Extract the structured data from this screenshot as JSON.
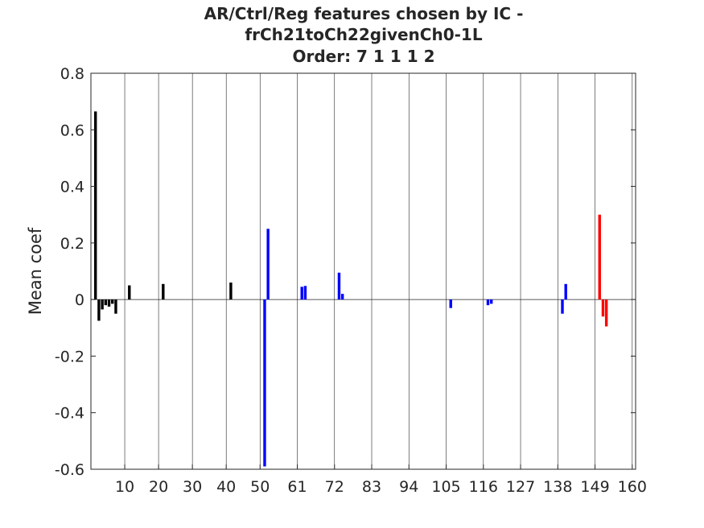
{
  "chart_data": {
    "type": "bar",
    "title": [
      "AR/Ctrl/Reg features chosen by IC -",
      "frCh21toCh22givenCh0-1L",
      "Order: 7 1 1 1 2"
    ],
    "xlabel": "",
    "ylabel": "Mean coef",
    "xlim": [
      0,
      161
    ],
    "ylim": [
      -0.6,
      0.8
    ],
    "yticks": [
      -0.6,
      -0.4,
      -0.2,
      0,
      0.2,
      0.4,
      0.6,
      0.8
    ],
    "ytick_labels": [
      "-0.6",
      "-0.4",
      "-0.2",
      "0",
      "0.2",
      "0.4",
      "0.6",
      "0.8"
    ],
    "xticks": [
      10,
      20,
      30,
      40,
      50,
      61,
      72,
      83,
      94,
      105,
      116,
      127,
      138,
      149,
      160
    ],
    "xtick_labels": [
      "10",
      "20",
      "30",
      "40",
      "50",
      "61",
      "72",
      "83",
      "94",
      "105",
      "116",
      "127",
      "138",
      "149",
      "160"
    ],
    "grid": "vertical lines at x ticks",
    "series": [
      {
        "color": "#000000",
        "x": [
          1,
          2,
          3,
          4,
          5,
          6,
          7,
          11,
          21,
          41
        ],
        "values": [
          0.665,
          -0.075,
          -0.035,
          -0.02,
          -0.025,
          -0.015,
          -0.05,
          0.05,
          0.055,
          0.06
        ]
      },
      {
        "color": "#0000ff",
        "x": [
          51,
          52,
          62,
          63,
          73,
          74,
          106,
          117,
          118,
          139,
          140
        ],
        "values": [
          -0.59,
          0.25,
          0.045,
          0.048,
          0.095,
          0.02,
          -0.03,
          -0.02,
          -0.015,
          -0.05,
          0.055
        ]
      },
      {
        "color": "#ff0000",
        "x": [
          150,
          151,
          152
        ],
        "values": [
          0.3,
          -0.06,
          -0.095
        ]
      }
    ]
  }
}
